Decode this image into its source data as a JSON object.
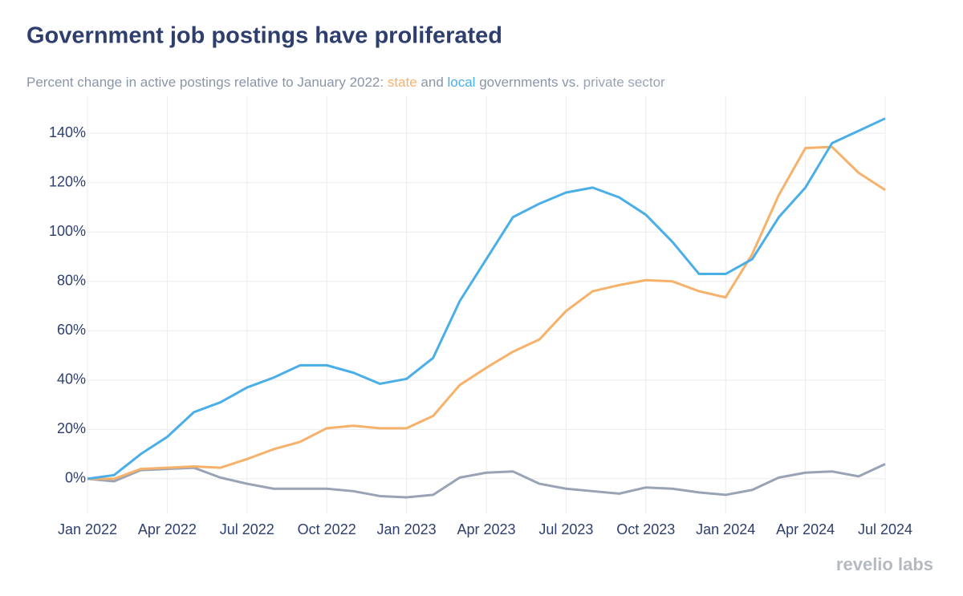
{
  "chart_data": {
    "type": "line",
    "title": "Government job postings have proliferated",
    "subtitle_parts": [
      "Percent change in active postings relative to January 2022: ",
      " and ",
      " governments vs. "
    ],
    "branding": "revelio labs",
    "categories": [
      "Jan 2022",
      null,
      null,
      "Apr 2022",
      null,
      null,
      "Jul 2022",
      null,
      null,
      "Oct 2022",
      null,
      null,
      "Jan 2023",
      null,
      null,
      "Apr 2023",
      null,
      null,
      "Jul 2023",
      null,
      null,
      "Oct 2023",
      null,
      null,
      "Jan 2024",
      null,
      null,
      "Apr 2024",
      null,
      null,
      "Jul 2024"
    ],
    "series": [
      {
        "name": "state",
        "color": "#f6b26b",
        "values": [
          0,
          0,
          4,
          4.5,
          5,
          4.5,
          8,
          12,
          15,
          20.5,
          21.5,
          20.5,
          20.5,
          25.5,
          38,
          45,
          51.5,
          56.5,
          68,
          76,
          78.5,
          80.5,
          80,
          76,
          73.5,
          91,
          115,
          134,
          134.5,
          124,
          117
        ]
      },
      {
        "name": "local",
        "color": "#4aaee8",
        "values": [
          0,
          1.5,
          10,
          17,
          27,
          31,
          37,
          41,
          46,
          46,
          43,
          38.5,
          40.5,
          49,
          72,
          89,
          106,
          111.5,
          116,
          118,
          114,
          107,
          96,
          83,
          83,
          89,
          106,
          118,
          136,
          141,
          146
        ]
      },
      {
        "name": "private sector",
        "color": "#9aa3b5",
        "values": [
          0,
          -1,
          3.5,
          4,
          4.5,
          0.5,
          -2,
          -4,
          -4,
          -4,
          -5,
          -7,
          -7.5,
          -6.5,
          0.5,
          2.5,
          3,
          -2,
          -4,
          -5,
          -6,
          -3.5,
          -4,
          -5.5,
          -6.5,
          -4.5,
          0.5,
          2.5,
          3,
          1,
          6
        ]
      }
    ],
    "ylim": [
      -14,
      155
    ],
    "yticks": [
      {
        "value": 0,
        "label": "0%"
      },
      {
        "value": 20,
        "label": "20%"
      },
      {
        "value": 40,
        "label": "40%"
      },
      {
        "value": 60,
        "label": "60%"
      },
      {
        "value": 80,
        "label": "80%"
      },
      {
        "value": 100,
        "label": "100%"
      },
      {
        "value": 120,
        "label": "120%"
      },
      {
        "value": 140,
        "label": "140%"
      }
    ],
    "grid": true
  }
}
